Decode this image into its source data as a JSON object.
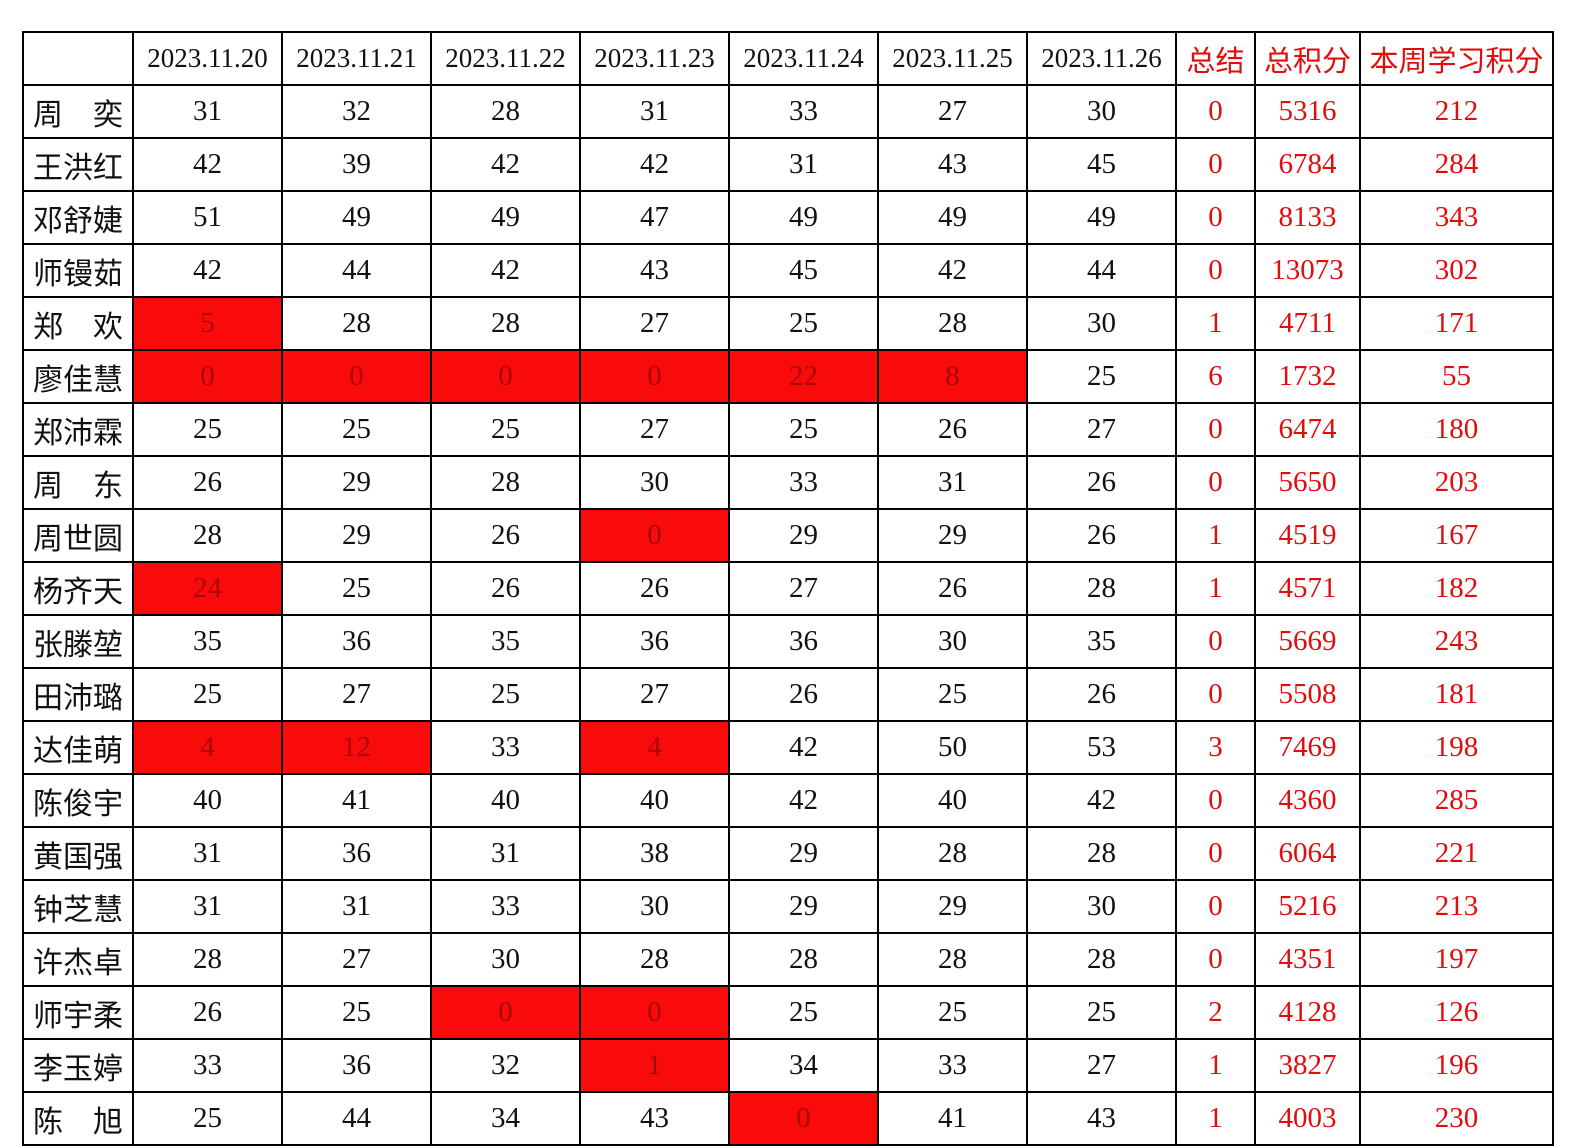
{
  "table": {
    "corner_label": "",
    "date_headers": [
      "2023.11.20",
      "2023.11.21",
      "2023.11.22",
      "2023.11.23",
      "2023.11.24",
      "2023.11.25",
      "2023.11.26"
    ],
    "summary_header": "总结",
    "total_header": "总积分",
    "week_header": "本周学习积分",
    "rows": [
      {
        "name": "周　奕",
        "daily": [
          {
            "v": "31"
          },
          {
            "v": "32"
          },
          {
            "v": "28"
          },
          {
            "v": "31"
          },
          {
            "v": "33"
          },
          {
            "v": "27"
          },
          {
            "v": "30"
          }
        ],
        "summary": "0",
        "total": "5316",
        "week": "212"
      },
      {
        "name": "王洪红",
        "daily": [
          {
            "v": "42"
          },
          {
            "v": "39"
          },
          {
            "v": "42"
          },
          {
            "v": "42"
          },
          {
            "v": "31"
          },
          {
            "v": "43"
          },
          {
            "v": "45"
          }
        ],
        "summary": "0",
        "total": "6784",
        "week": "284"
      },
      {
        "name": "邓舒婕",
        "daily": [
          {
            "v": "51"
          },
          {
            "v": "49"
          },
          {
            "v": "49"
          },
          {
            "v": "47"
          },
          {
            "v": "49"
          },
          {
            "v": "49"
          },
          {
            "v": "49"
          }
        ],
        "summary": "0",
        "total": "8133",
        "week": "343"
      },
      {
        "name": "师镘茹",
        "daily": [
          {
            "v": "42"
          },
          {
            "v": "44"
          },
          {
            "v": "42"
          },
          {
            "v": "43"
          },
          {
            "v": "45"
          },
          {
            "v": "42"
          },
          {
            "v": "44"
          }
        ],
        "summary": "0",
        "total": "13073",
        "week": "302"
      },
      {
        "name": "郑　欢",
        "daily": [
          {
            "v": "5",
            "hl": true
          },
          {
            "v": "28"
          },
          {
            "v": "28"
          },
          {
            "v": "27"
          },
          {
            "v": "25"
          },
          {
            "v": "28"
          },
          {
            "v": "30"
          }
        ],
        "summary": "1",
        "total": "4711",
        "week": "171"
      },
      {
        "name": "廖佳慧",
        "daily": [
          {
            "v": "0",
            "hl": true
          },
          {
            "v": "0",
            "hl": true
          },
          {
            "v": "0",
            "hl": true
          },
          {
            "v": "0",
            "hl": true
          },
          {
            "v": "22",
            "hl": true
          },
          {
            "v": "8",
            "hl": true
          },
          {
            "v": "25"
          }
        ],
        "summary": "6",
        "total": "1732",
        "week": "55"
      },
      {
        "name": "郑沛霖",
        "daily": [
          {
            "v": "25"
          },
          {
            "v": "25"
          },
          {
            "v": "25"
          },
          {
            "v": "27"
          },
          {
            "v": "25"
          },
          {
            "v": "26"
          },
          {
            "v": "27"
          }
        ],
        "summary": "0",
        "total": "6474",
        "week": "180"
      },
      {
        "name": "周　东",
        "daily": [
          {
            "v": "26"
          },
          {
            "v": "29"
          },
          {
            "v": "28"
          },
          {
            "v": "30"
          },
          {
            "v": "33"
          },
          {
            "v": "31"
          },
          {
            "v": "26"
          }
        ],
        "summary": "0",
        "total": "5650",
        "week": "203"
      },
      {
        "name": "周世圆",
        "daily": [
          {
            "v": "28"
          },
          {
            "v": "29"
          },
          {
            "v": "26"
          },
          {
            "v": "0",
            "hl": true
          },
          {
            "v": "29"
          },
          {
            "v": "29"
          },
          {
            "v": "26"
          }
        ],
        "summary": "1",
        "total": "4519",
        "week": "167"
      },
      {
        "name": "杨齐天",
        "daily": [
          {
            "v": "24",
            "hl": true
          },
          {
            "v": "25"
          },
          {
            "v": "26"
          },
          {
            "v": "26"
          },
          {
            "v": "27"
          },
          {
            "v": "26"
          },
          {
            "v": "28"
          }
        ],
        "summary": "1",
        "total": "4571",
        "week": "182"
      },
      {
        "name": "张滕堃",
        "daily": [
          {
            "v": "35"
          },
          {
            "v": "36"
          },
          {
            "v": "35"
          },
          {
            "v": "36"
          },
          {
            "v": "36"
          },
          {
            "v": "30"
          },
          {
            "v": "35"
          }
        ],
        "summary": "0",
        "total": "5669",
        "week": "243"
      },
      {
        "name": "田沛璐",
        "daily": [
          {
            "v": "25"
          },
          {
            "v": "27"
          },
          {
            "v": "25"
          },
          {
            "v": "27"
          },
          {
            "v": "26"
          },
          {
            "v": "25"
          },
          {
            "v": "26"
          }
        ],
        "summary": "0",
        "total": "5508",
        "week": "181"
      },
      {
        "name": "达佳萌",
        "daily": [
          {
            "v": "4",
            "hl": true
          },
          {
            "v": "12",
            "hl": true
          },
          {
            "v": "33"
          },
          {
            "v": "4",
            "hl": true
          },
          {
            "v": "42"
          },
          {
            "v": "50"
          },
          {
            "v": "53"
          }
        ],
        "summary": "3",
        "total": "7469",
        "week": "198"
      },
      {
        "name": "陈俊宇",
        "daily": [
          {
            "v": "40"
          },
          {
            "v": "41"
          },
          {
            "v": "40"
          },
          {
            "v": "40"
          },
          {
            "v": "42"
          },
          {
            "v": "40"
          },
          {
            "v": "42"
          }
        ],
        "summary": "0",
        "total": "4360",
        "week": "285"
      },
      {
        "name": "黄国强",
        "daily": [
          {
            "v": "31"
          },
          {
            "v": "36"
          },
          {
            "v": "31"
          },
          {
            "v": "38"
          },
          {
            "v": "29"
          },
          {
            "v": "28"
          },
          {
            "v": "28"
          }
        ],
        "summary": "0",
        "total": "6064",
        "week": "221"
      },
      {
        "name": "钟芝慧",
        "daily": [
          {
            "v": "31"
          },
          {
            "v": "31"
          },
          {
            "v": "33"
          },
          {
            "v": "30"
          },
          {
            "v": "29"
          },
          {
            "v": "29"
          },
          {
            "v": "30"
          }
        ],
        "summary": "0",
        "total": "5216",
        "week": "213"
      },
      {
        "name": "许杰卓",
        "daily": [
          {
            "v": "28"
          },
          {
            "v": "27"
          },
          {
            "v": "30"
          },
          {
            "v": "28"
          },
          {
            "v": "28"
          },
          {
            "v": "28"
          },
          {
            "v": "28"
          }
        ],
        "summary": "0",
        "total": "4351",
        "week": "197"
      },
      {
        "name": "师宇柔",
        "daily": [
          {
            "v": "26"
          },
          {
            "v": "25"
          },
          {
            "v": "0",
            "hl": true
          },
          {
            "v": "0",
            "hl": true
          },
          {
            "v": "25"
          },
          {
            "v": "25"
          },
          {
            "v": "25"
          }
        ],
        "summary": "2",
        "total": "4128",
        "week": "126"
      },
      {
        "name": "李玉婷",
        "daily": [
          {
            "v": "33"
          },
          {
            "v": "36"
          },
          {
            "v": "32"
          },
          {
            "v": "1",
            "hl": true
          },
          {
            "v": "34"
          },
          {
            "v": "33"
          },
          {
            "v": "27"
          }
        ],
        "summary": "1",
        "total": "3827",
        "week": "196"
      },
      {
        "name": "陈　旭",
        "daily": [
          {
            "v": "25"
          },
          {
            "v": "44"
          },
          {
            "v": "34"
          },
          {
            "v": "43"
          },
          {
            "v": "0",
            "hl": true
          },
          {
            "v": "41"
          },
          {
            "v": "43"
          }
        ],
        "summary": "1",
        "total": "4003",
        "week": "230"
      }
    ]
  },
  "colors": {
    "highlight_bg": "#fa0b0b",
    "highlight_text": "#a80808",
    "red_text": "#e10c0c",
    "grid": "#000000"
  }
}
